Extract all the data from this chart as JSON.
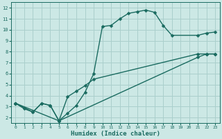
{
  "xlabel": "Humidex (Indice chaleur)",
  "bg_color": "#cce8e5",
  "grid_color": "#aacfcc",
  "line_color": "#1a6b60",
  "xlim": [
    -0.5,
    23.5
  ],
  "ylim": [
    1.5,
    12.5
  ],
  "xticks": [
    0,
    1,
    2,
    3,
    4,
    5,
    6,
    7,
    8,
    9,
    10,
    11,
    12,
    13,
    14,
    15,
    16,
    17,
    18,
    19,
    20,
    21,
    22,
    23
  ],
  "yticks": [
    2,
    3,
    4,
    5,
    6,
    7,
    8,
    9,
    10,
    11,
    12
  ],
  "line1_x": [
    0,
    1,
    2,
    3,
    4,
    5,
    6,
    7,
    8,
    9,
    10,
    11,
    12,
    13,
    14,
    15,
    16,
    17,
    18,
    21,
    22,
    23
  ],
  "line1_y": [
    3.3,
    2.8,
    2.5,
    3.3,
    3.1,
    1.7,
    2.4,
    3.1,
    4.3,
    6.0,
    10.3,
    10.4,
    11.0,
    11.5,
    11.65,
    11.8,
    11.6,
    10.4,
    9.5,
    9.5,
    9.7,
    9.8
  ],
  "line2_x": [
    0,
    2,
    3,
    4,
    5,
    6,
    7,
    8,
    9,
    21,
    22,
    23
  ],
  "line2_y": [
    3.3,
    2.5,
    3.3,
    3.1,
    1.7,
    3.9,
    4.4,
    4.9,
    5.5,
    7.8,
    7.8,
    7.8
  ],
  "line3_x": [
    0,
    5,
    21,
    22,
    23
  ],
  "line3_y": [
    3.3,
    1.7,
    7.5,
    7.8,
    7.8
  ],
  "marker_size": 2.5,
  "line_width": 1.0
}
